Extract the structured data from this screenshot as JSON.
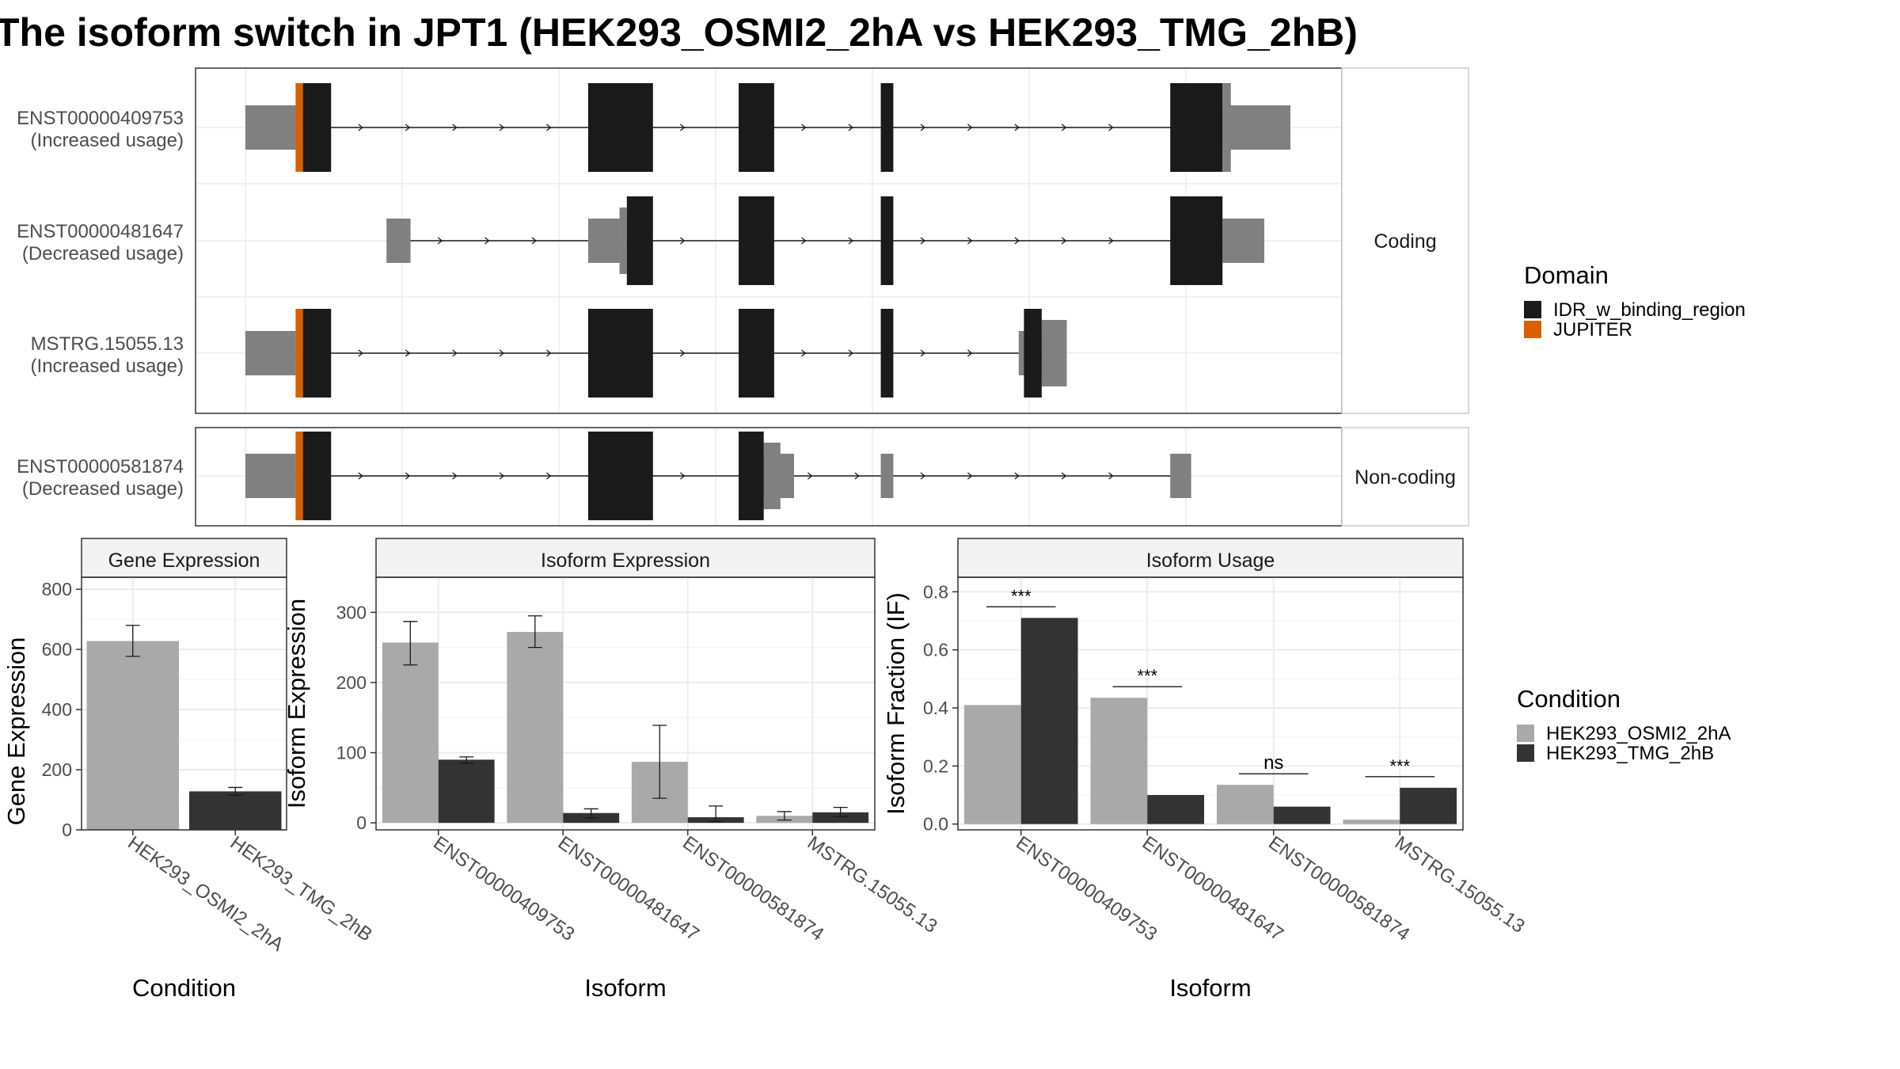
{
  "title": "The isoform switch in JPT1 (HEK293_OSMI2_2hA vs HEK293_TMG_2hB)",
  "colors": {
    "utr": "#808080",
    "cds": "#1a1a1a",
    "idr": "#1a1a1a",
    "jupiter": "#d95f02",
    "cond_a": "#a9a9a9",
    "cond_b": "#333333",
    "grid": "#ebebeb",
    "strip": "#f2f2f2"
  },
  "isoform_panel": {
    "genomic_range": [
      0,
      1000
    ],
    "facets": [
      {
        "label": "Coding",
        "rows": [
          0,
          1,
          2
        ]
      },
      {
        "label": "Non-coding",
        "rows": [
          3
        ]
      }
    ],
    "transcripts": [
      {
        "id": "ENST00000409753",
        "status": "(Increased usage)",
        "utr": [
          [
            0,
            55
          ],
          [
            890,
            1000
          ]
        ],
        "cds": [
          [
            55,
            82
          ],
          [
            328,
            390
          ],
          [
            472,
            506
          ],
          [
            608,
            620
          ],
          [
            885,
            935
          ]
        ],
        "cds_tail": [
          [
            935,
            943
          ]
        ],
        "jupiter": [
          [
            48,
            55
          ]
        ]
      },
      {
        "id": "ENST00000481647",
        "status": "(Decreased usage)",
        "utr": [
          [
            135,
            158
          ],
          [
            328,
            358
          ],
          [
            935,
            975
          ]
        ],
        "utr_tall": [
          [
            358,
            365
          ]
        ],
        "cds": [
          [
            365,
            390
          ],
          [
            472,
            506
          ],
          [
            608,
            620
          ],
          [
            885,
            935
          ]
        ],
        "cds_tail": [],
        "jupiter": []
      },
      {
        "id": "MSTRG.15055.13",
        "status": "(Increased usage)",
        "utr": [
          [
            0,
            48
          ],
          [
            740,
            762
          ]
        ],
        "cds": [
          [
            55,
            82
          ],
          [
            328,
            390
          ],
          [
            472,
            506
          ],
          [
            608,
            620
          ],
          [
            745,
            762
          ]
        ],
        "utr_tall": [
          [
            762,
            786
          ]
        ],
        "cds_tail": [],
        "jupiter": [
          [
            48,
            55
          ]
        ]
      },
      {
        "id": "ENST00000581874",
        "status": "(Decreased usage)",
        "utr": [
          [
            0,
            48
          ],
          [
            496,
            525
          ],
          [
            608,
            620
          ],
          [
            885,
            905
          ]
        ],
        "utr_tall": [
          [
            496,
            512
          ]
        ],
        "cds": [
          [
            55,
            82
          ],
          [
            328,
            390
          ],
          [
            472,
            496
          ]
        ],
        "cds_tail": [],
        "jupiter": [
          [
            48,
            55
          ]
        ]
      }
    ],
    "legend": {
      "title": "Domain",
      "items": [
        {
          "label": "IDR_w_binding_region",
          "color": "#1a1a1a"
        },
        {
          "label": "JUPITER",
          "color": "#d95f02"
        }
      ]
    }
  },
  "chart_data": [
    {
      "type": "bar",
      "title": "Gene Expression",
      "xlabel": "Condition",
      "ylabel": "Gene Expression",
      "categories": [
        "HEK293_OSMI2_2hA",
        "HEK293_TMG_2hB"
      ],
      "series": [
        {
          "values": [
            628,
            128
          ],
          "errors": [
            [
              577,
              680
            ],
            [
              115,
              141
            ]
          ]
        }
      ],
      "ylim": [
        0,
        840
      ],
      "yticks": [
        0,
        200,
        400,
        600,
        800
      ]
    },
    {
      "type": "bar",
      "title": "Isoform Expression",
      "xlabel": "Isoform",
      "ylabel": "Isoform Expression",
      "categories": [
        "ENST00000409753",
        "ENST00000481647",
        "ENST00000581874",
        "MSTRG.15055.13"
      ],
      "series": [
        {
          "name": "HEK293_OSMI2_2hA",
          "values": [
            257,
            272,
            87,
            10
          ],
          "errors": [
            [
              225,
              287
            ],
            [
              250,
              295
            ],
            [
              35,
              139
            ],
            [
              4,
              16
            ]
          ]
        },
        {
          "name": "HEK293_TMG_2hB",
          "values": [
            90,
            14,
            8,
            15
          ],
          "errors": [
            [
              85,
              94
            ],
            [
              7,
              20
            ],
            [
              2,
              24
            ],
            [
              9,
              22
            ]
          ]
        }
      ],
      "ylim": [
        -10,
        350
      ],
      "yticks": [
        0,
        100,
        200,
        300
      ]
    },
    {
      "type": "bar",
      "title": "Isoform Usage",
      "xlabel": "Isoform",
      "ylabel": "Isoform Fraction (IF)",
      "categories": [
        "ENST00000409753",
        "ENST00000481647",
        "ENST00000581874",
        "MSTRG.15055.13"
      ],
      "series": [
        {
          "name": "HEK293_OSMI2_2hA",
          "values": [
            0.41,
            0.435,
            0.135,
            0.015
          ]
        },
        {
          "name": "HEK293_TMG_2hB",
          "values": [
            0.71,
            0.1,
            0.06,
            0.125
          ]
        }
      ],
      "significance": [
        "***",
        "***",
        "ns",
        "***"
      ],
      "ylim": [
        -0.02,
        0.85
      ],
      "yticks": [
        "0.0",
        "0.2",
        "0.4",
        "0.6",
        "0.8"
      ],
      "ytick_values": [
        0,
        0.2,
        0.4,
        0.6,
        0.8
      ]
    }
  ],
  "condition_legend": {
    "title": "Condition",
    "items": [
      {
        "label": "HEK293_OSMI2_2hA",
        "color": "#a9a9a9"
      },
      {
        "label": "HEK293_TMG_2hB",
        "color": "#333333"
      }
    ]
  }
}
